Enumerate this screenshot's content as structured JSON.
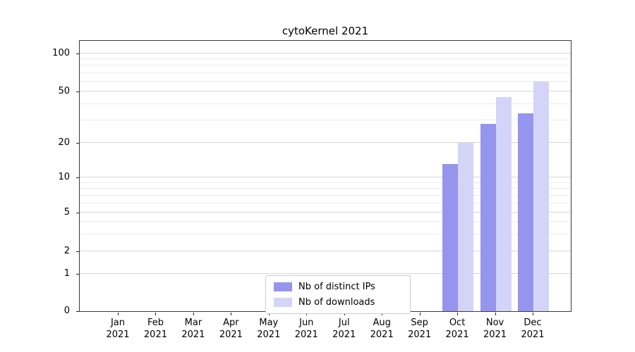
{
  "chart_data": {
    "type": "bar",
    "title": "cytoKernel 2021",
    "categories": [
      "Jan 2021",
      "Feb 2021",
      "Mar 2021",
      "Apr 2021",
      "May 2021",
      "Jun 2021",
      "Jul 2021",
      "Aug 2021",
      "Sep 2021",
      "Oct 2021",
      "Nov 2021",
      "Dec 2021"
    ],
    "series": [
      {
        "name": "Nb of distinct IPs",
        "color": "#9595ee",
        "values": [
          0,
          0,
          0,
          0,
          0,
          0,
          0,
          0,
          0,
          13,
          28,
          34
        ]
      },
      {
        "name": "Nb of downloads",
        "color": "#d4d4f8",
        "values": [
          0,
          0,
          0,
          0,
          0,
          0,
          0,
          0,
          0,
          20,
          45,
          60
        ]
      }
    ],
    "yscale": "symlog",
    "yticks": [
      0,
      1,
      2,
      5,
      10,
      20,
      50,
      100
    ],
    "yminor_gridlines": [
      3,
      4,
      6,
      7,
      8,
      9,
      30,
      40,
      60,
      70,
      80,
      90
    ],
    "ylim": [
      0,
      110
    ],
    "xlabel": "",
    "ylabel": "",
    "grid": "horizontal",
    "legend_position": "lower-center-inside"
  }
}
